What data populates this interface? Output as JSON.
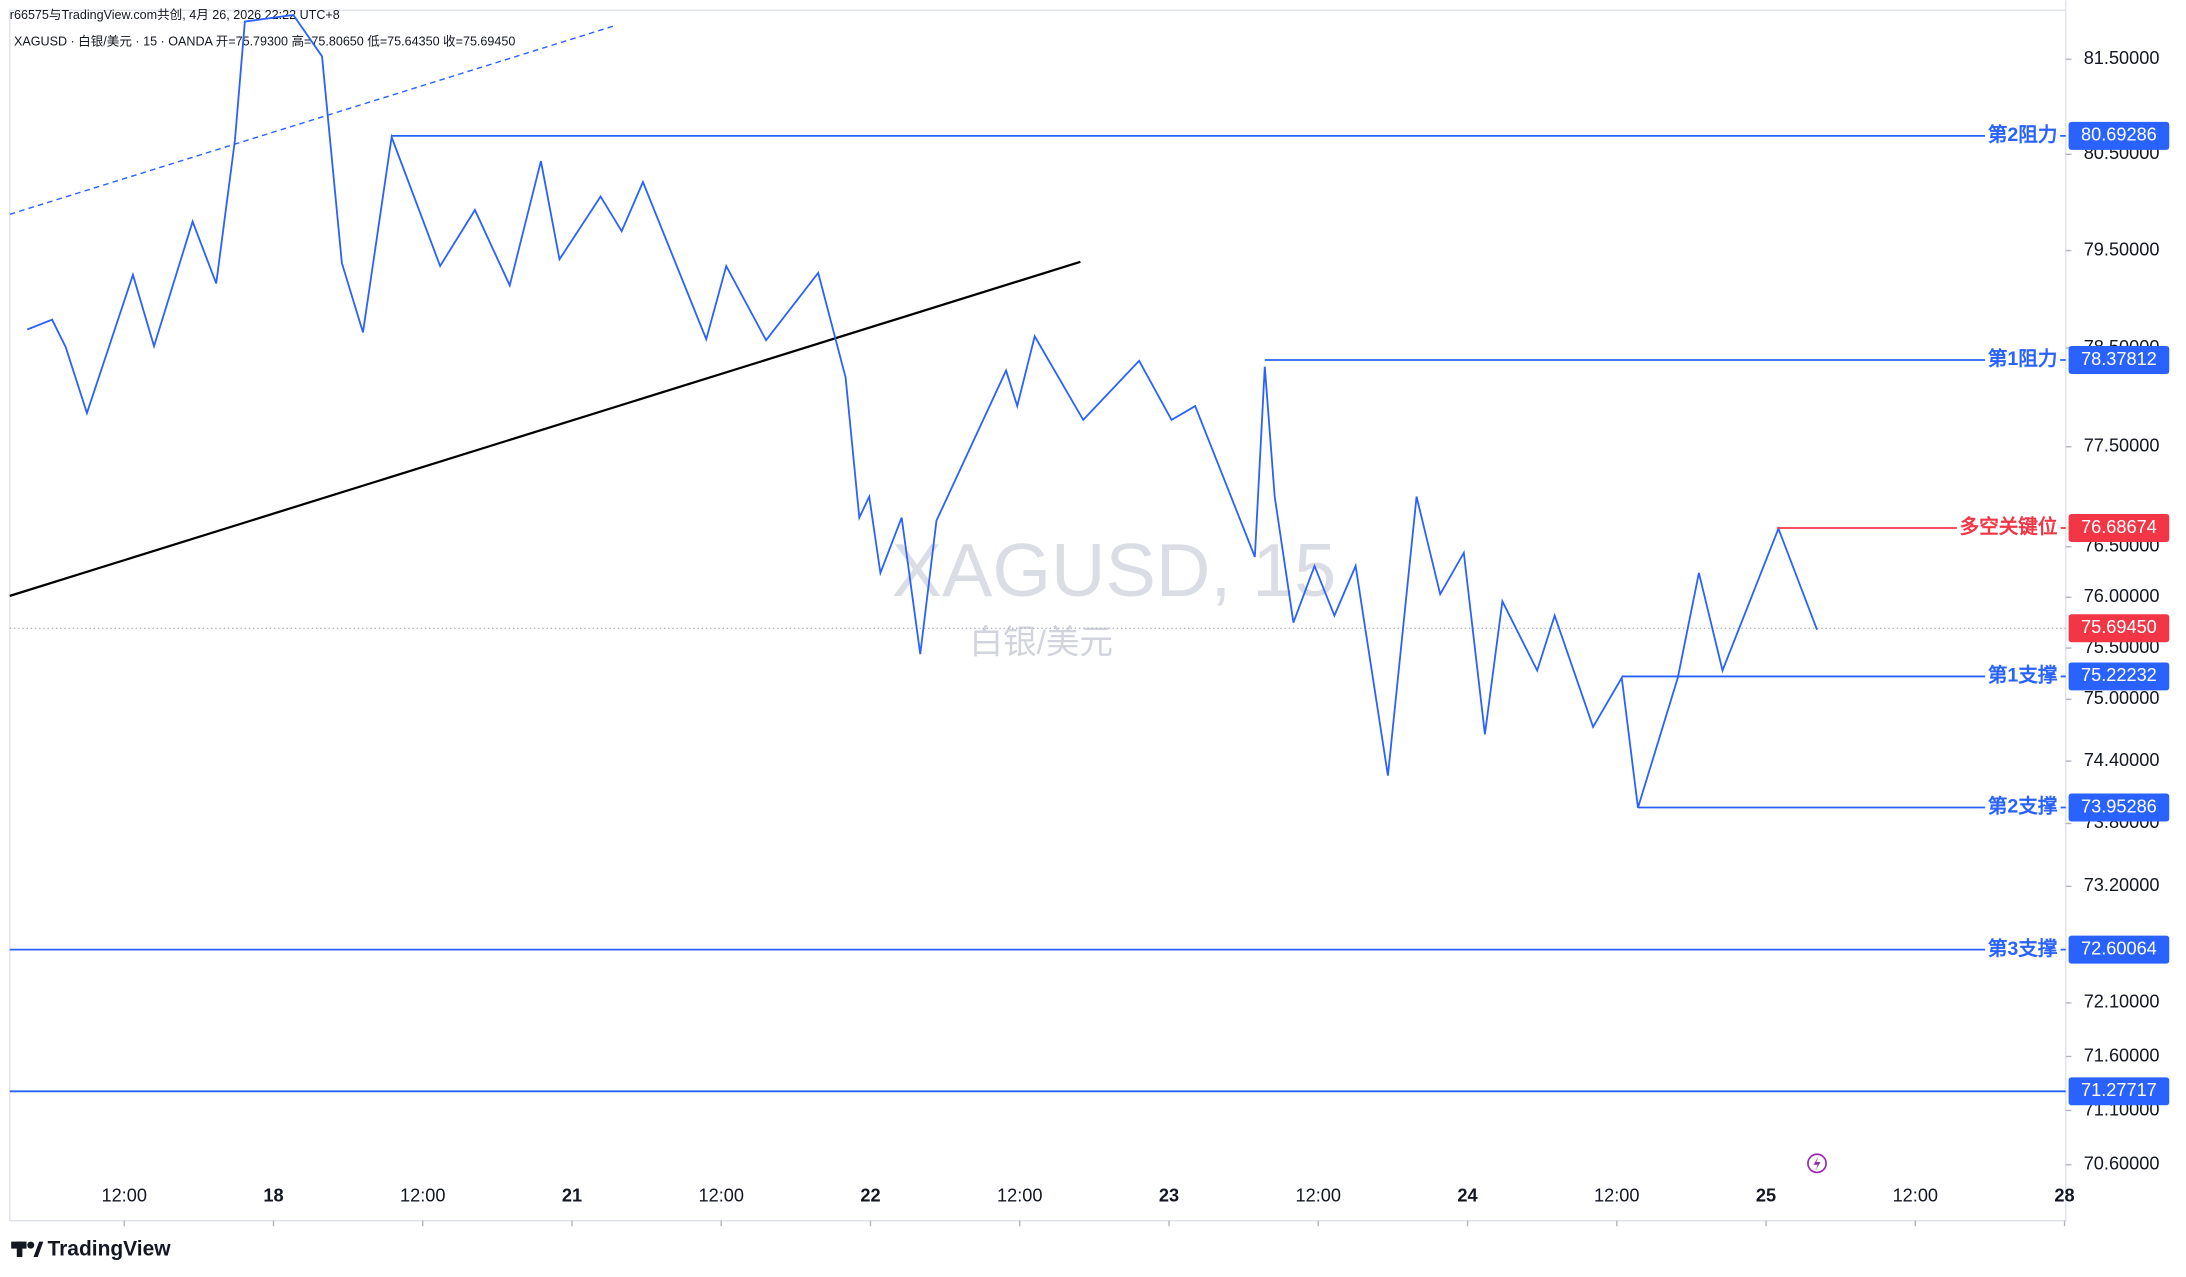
{
  "chart_data": {
    "type": "line",
    "header_credit": "r66575与TradingView.com共创, 4月 26, 2026 22:22 UTC+8",
    "header_symbol": "XAGUSD · 白银/美元 · 15 · OANDA  开=75.79300  高=75.80650  低=75.64350  收=75.69450",
    "watermark_symbol": "XAGUSD, 15",
    "watermark_name": "白银/美元",
    "logo": "TradingView",
    "log_scale": true,
    "x": [
      4.2,
      6.2,
      7.3,
      9.0,
      12.7,
      14.4,
      17.5,
      19.4,
      20.9,
      21.7,
      25.6,
      27.9,
      29.5,
      31.2,
      33.5,
      37.4,
      40.2,
      43.0,
      45.5,
      47.0,
      50.3,
      52.0,
      53.7,
      58.8,
      60.4,
      63.6,
      67.8,
      70.0,
      71.1,
      71.9,
      72.8,
      74.5,
      76.0,
      77.3,
      82.9,
      83.8,
      85.2,
      89.1,
      93.6,
      96.2,
      98.1,
      102.9,
      103.7,
      104.5,
      106.0,
      107.7,
      109.3,
      111.0,
      113.6,
      115.9,
      117.8,
      119.7,
      121.4,
      122.8,
      125.6,
      127.0,
      130.1,
      132.4,
      133.7,
      136.9,
      138.6,
      140.5,
      145.0,
      148.1
    ],
    "series": [
      {
        "color": "#2962ff",
        "values": [
          78.69,
          78.79,
          78.51,
          77.84,
          79.25,
          78.52,
          79.8,
          79.16,
          80.65,
          81.9,
          81.97,
          81.53,
          79.37,
          78.66,
          80.68,
          79.34,
          79.92,
          79.14,
          80.43,
          79.41,
          80.06,
          79.7,
          80.21,
          78.59,
          79.34,
          78.58,
          79.27,
          78.2,
          76.79,
          77.0,
          76.24,
          76.79,
          75.44,
          76.76,
          78.27,
          77.91,
          78.62,
          77.77,
          78.37,
          77.77,
          77.91,
          76.4,
          78.31,
          77.0,
          75.75,
          76.31,
          75.82,
          76.31,
          74.26,
          77.0,
          76.03,
          76.44,
          74.66,
          75.96,
          75.28,
          75.82,
          74.73,
          75.21,
          73.95,
          75.21,
          76.24,
          75.28,
          76.68,
          75.68
        ]
      }
    ],
    "xlim": [
      2.8,
      168.1
    ],
    "xticks": [
      {
        "value": 12,
        "label": "12:00"
      },
      {
        "value": 24,
        "label": "18"
      },
      {
        "value": 36,
        "label": "12:00"
      },
      {
        "value": 48,
        "label": "21"
      },
      {
        "value": 60,
        "label": "12:00"
      },
      {
        "value": 72,
        "label": "22"
      },
      {
        "value": 84,
        "label": "12:00"
      },
      {
        "value": 96,
        "label": "23"
      },
      {
        "value": 108,
        "label": "12:00"
      },
      {
        "value": 120,
        "label": "24"
      },
      {
        "value": 132,
        "label": "12:00"
      },
      {
        "value": 144,
        "label": "25"
      },
      {
        "value": 156,
        "label": "12:00"
      },
      {
        "value": 168,
        "label": "28"
      }
    ],
    "ylim": [
      70.09,
      82.02
    ],
    "yticks": [
      {
        "value": 81.5,
        "label": "81.50000"
      },
      {
        "value": 80.5,
        "label": "80.50000"
      },
      {
        "value": 79.5,
        "label": "79.50000"
      },
      {
        "value": 78.5,
        "label": "78.50000"
      },
      {
        "value": 77.5,
        "label": "77.50000"
      },
      {
        "value": 76.5,
        "label": "76.50000"
      },
      {
        "value": 76,
        "label": "76.00000"
      },
      {
        "value": 75.5,
        "label": "75.50000"
      },
      {
        "value": 75,
        "label": "75.00000"
      },
      {
        "value": 74.4,
        "label": "74.40000"
      },
      {
        "value": 73.8,
        "label": "73.80000"
      },
      {
        "value": 73.2,
        "label": "73.20000"
      },
      {
        "value": 72.1,
        "label": "72.10000"
      },
      {
        "value": 71.6,
        "label": "71.60000"
      },
      {
        "value": 71.1,
        "label": "71.10000"
      },
      {
        "value": 70.6,
        "label": "70.60000"
      }
    ],
    "levels": [
      {
        "label": "第2阻力",
        "value": 80.69286,
        "color": "#2962ff",
        "start": 33.5
      },
      {
        "label": "第1阻力",
        "value": 78.37812,
        "color": "#2962ff",
        "start": 103.7
      },
      {
        "label": "多空关键位",
        "value": 76.68674,
        "color": "#f23645",
        "start": 144.9
      },
      {
        "label": "第1支撑",
        "value": 75.22232,
        "color": "#2962ff",
        "start": 132.4
      },
      {
        "label": "第2支撑",
        "value": 73.95286,
        "color": "#2962ff",
        "start": 133.7
      },
      {
        "label": "第3支撑",
        "value": 72.60064,
        "color": "#2962ff"
      },
      {
        "value": 71.27717,
        "color": "#2962ff"
      }
    ],
    "current_price": {
      "value": 75.6945,
      "label": "75.69450",
      "color": "#f23645"
    }
  }
}
